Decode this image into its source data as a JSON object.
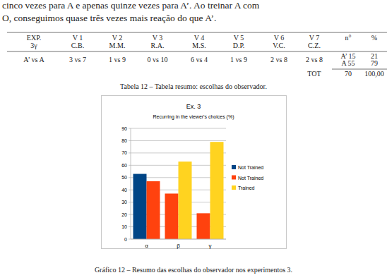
{
  "text": {
    "lines": [
      "cinco vezes para A e apenas quinze vezes para A’. Ao treinar A com",
      "O, conseguimos quase três vezes mais reação do que A’."
    ]
  },
  "table": {
    "header": [
      [
        "EXP.",
        "3γ"
      ],
      [
        "V 1",
        "C.B."
      ],
      [
        "V 2",
        "M.M."
      ],
      [
        "V 3",
        "R.A."
      ],
      [
        "V 4",
        "M.S."
      ],
      [
        "V 5",
        "D.P."
      ],
      [
        "V 6",
        "V.C."
      ],
      [
        "V 7",
        "C.Z."
      ],
      [
        "n°"
      ],
      [
        "%"
      ]
    ],
    "rows": [
      [
        [
          "A’ vs A"
        ],
        [
          "3 vs 7"
        ],
        [
          "1 vs 9"
        ],
        [
          "0 vs 10"
        ],
        [
          "6 vs 4"
        ],
        [
          "1 vs 9"
        ],
        [
          "2 vs 8"
        ],
        [
          "2 vs 8"
        ],
        [
          "A’ 15",
          "A 55"
        ],
        [
          "21",
          "79"
        ]
      ]
    ],
    "total": {
      "label": "TOT",
      "count": "70",
      "percent": "100,00"
    }
  },
  "table_caption": "Tabela 12 – Tabela resumo: escolhas do observador.",
  "chart_data": {
    "type": "bar",
    "title": "Ex. 3",
    "subtitle": "Recurring in the viewer's choices (%)",
    "categories": [
      "α",
      "β",
      "γ"
    ],
    "series": [
      {
        "name": "Not Trained",
        "color": "#004586",
        "values": [
          53,
          null,
          null
        ]
      },
      {
        "name": "Not Trained",
        "color": "#ff420e",
        "values": [
          47,
          37,
          21
        ]
      },
      {
        "name": "Trained",
        "color": "#ffd320",
        "values": [
          null,
          63,
          79
        ]
      }
    ],
    "ylim": [
      0,
      90
    ],
    "yticks": [
      0,
      10,
      20,
      30,
      40,
      50,
      60,
      70,
      80,
      90
    ],
    "grid": true,
    "legend": "right"
  },
  "chart_caption": "Gráfico 12 – Resumo das escolhas do observador nos experimentos 3."
}
